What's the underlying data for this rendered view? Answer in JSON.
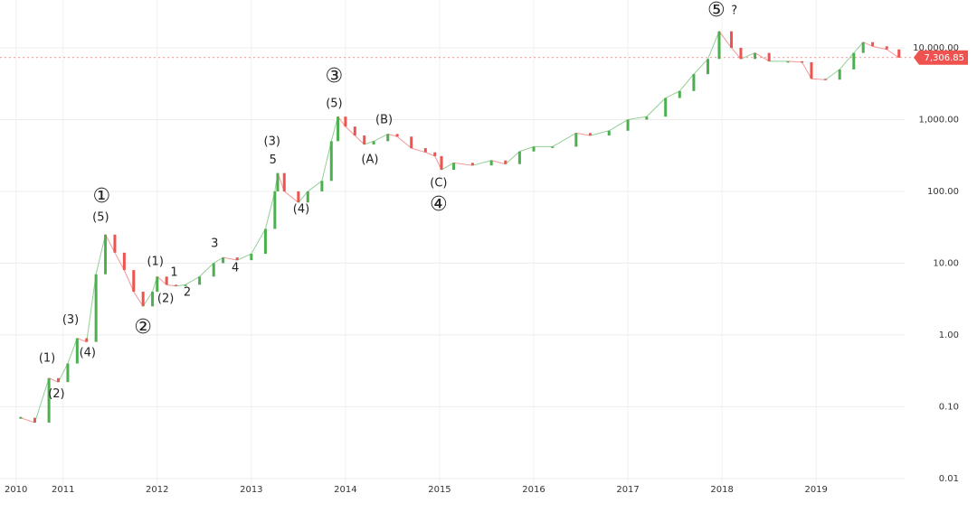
{
  "chart_data": {
    "type": "candles",
    "x": [
      2010.55,
      2010.7,
      2010.85,
      2010.95,
      2011.05,
      2011.15,
      2011.25,
      2011.35,
      2011.45,
      2011.55,
      2011.65,
      2011.75,
      2011.85,
      2011.95,
      2012.0,
      2012.1,
      2012.2,
      2012.3,
      2012.45,
      2012.6,
      2012.7,
      2012.85,
      2013.0,
      2013.15,
      2013.25,
      2013.28,
      2013.35,
      2013.5,
      2013.6,
      2013.75,
      2013.85,
      2013.92,
      2014.0,
      2014.1,
      2014.2,
      2014.3,
      2014.45,
      2014.55,
      2014.7,
      2014.85,
      2014.95,
      2015.02,
      2015.15,
      2015.35,
      2015.55,
      2015.7,
      2015.85,
      2016.0,
      2016.2,
      2016.45,
      2016.6,
      2016.8,
      2017.0,
      2017.2,
      2017.4,
      2017.55,
      2017.7,
      2017.85,
      2017.97,
      2018.1,
      2018.2,
      2018.35,
      2018.5,
      2018.7,
      2018.85,
      2018.95,
      2019.1,
      2019.25,
      2019.4,
      2019.5,
      2019.6,
      2019.75,
      2019.88
    ],
    "values": [
      0.07,
      0.06,
      0.25,
      0.22,
      0.4,
      0.9,
      0.8,
      7,
      25,
      14,
      8,
      4,
      2.5,
      4,
      6.5,
      5,
      4.8,
      5,
      6.5,
      10,
      12,
      11,
      13.5,
      30,
      100,
      180,
      100,
      70,
      100,
      140,
      500,
      1100,
      800,
      600,
      450,
      500,
      630,
      580,
      400,
      350,
      310,
      200,
      250,
      230,
      270,
      240,
      360,
      420,
      420,
      650,
      600,
      700,
      1000,
      1100,
      2000,
      2500,
      4300,
      7000,
      17000,
      10000,
      7000,
      8500,
      6500,
      6500,
      6300,
      3700,
      3600,
      5000,
      8500,
      12000,
      10500,
      9500,
      7300
    ],
    "up_color": "#4caf50",
    "down_color": "#ef5350",
    "log_scale": true,
    "grid": true,
    "xlim": [
      2010.33,
      2019.94
    ],
    "xticks": [
      {
        "value": 2010.5,
        "label": "2010"
      },
      2011,
      2012,
      2013,
      2014,
      2015,
      2016,
      2017,
      2018,
      2019
    ],
    "ylim": [
      0.0079,
      46400
    ],
    "yticks": [
      {
        "value": 10000,
        "label": "10,000.00"
      },
      {
        "value": 1000,
        "label": "1,000.00"
      },
      {
        "value": 100,
        "label": "100.00"
      },
      {
        "value": 10,
        "label": "10.00"
      },
      {
        "value": 1,
        "label": "1.00"
      },
      {
        "value": 0.1,
        "label": "0.10"
      },
      {
        "value": 0.01,
        "label": "0.01"
      }
    ],
    "last_price": {
      "value": 7306.85,
      "label": "7,306.85"
    },
    "annotations": [
      {
        "text": "(1)",
        "x": 2010.83,
        "y": 0.47
      },
      {
        "text": "(2)",
        "x": 2010.93,
        "y": 0.15
      },
      {
        "text": "(3)",
        "x": 2011.08,
        "y": 1.6
      },
      {
        "text": "(4)",
        "x": 2011.26,
        "y": 0.56
      },
      {
        "text": "①",
        "x": 2011.41,
        "y": 84
      },
      {
        "text": "(5)",
        "x": 2011.4,
        "y": 43
      },
      {
        "text": "(1)",
        "x": 2011.98,
        "y": 10.4
      },
      {
        "text": "1",
        "x": 2012.18,
        "y": 7.4
      },
      {
        "text": "(2)",
        "x": 2012.09,
        "y": 3.2
      },
      {
        "text": "2",
        "x": 2012.32,
        "y": 3.9
      },
      {
        "text": "②",
        "x": 2011.85,
        "y": 1.26
      },
      {
        "text": "3",
        "x": 2012.61,
        "y": 18.6
      },
      {
        "text": "4",
        "x": 2012.83,
        "y": 8.5
      },
      {
        "text": "(3)",
        "x": 2013.22,
        "y": 490
      },
      {
        "text": "5",
        "x": 2013.23,
        "y": 270
      },
      {
        "text": "(4)",
        "x": 2013.53,
        "y": 56
      },
      {
        "text": "③",
        "x": 2013.88,
        "y": 3980
      },
      {
        "text": "(5)",
        "x": 2013.88,
        "y": 1660
      },
      {
        "text": "(A)",
        "x": 2014.26,
        "y": 275
      },
      {
        "text": "(B)",
        "x": 2014.41,
        "y": 990
      },
      {
        "text": "(C)",
        "x": 2014.99,
        "y": 130
      },
      {
        "text": "④",
        "x": 2014.99,
        "y": 65
      },
      {
        "text": "⑤",
        "x": 2017.94,
        "y": 33000
      },
      {
        "text": "?",
        "x": 2018.13,
        "y": 33000
      }
    ]
  }
}
